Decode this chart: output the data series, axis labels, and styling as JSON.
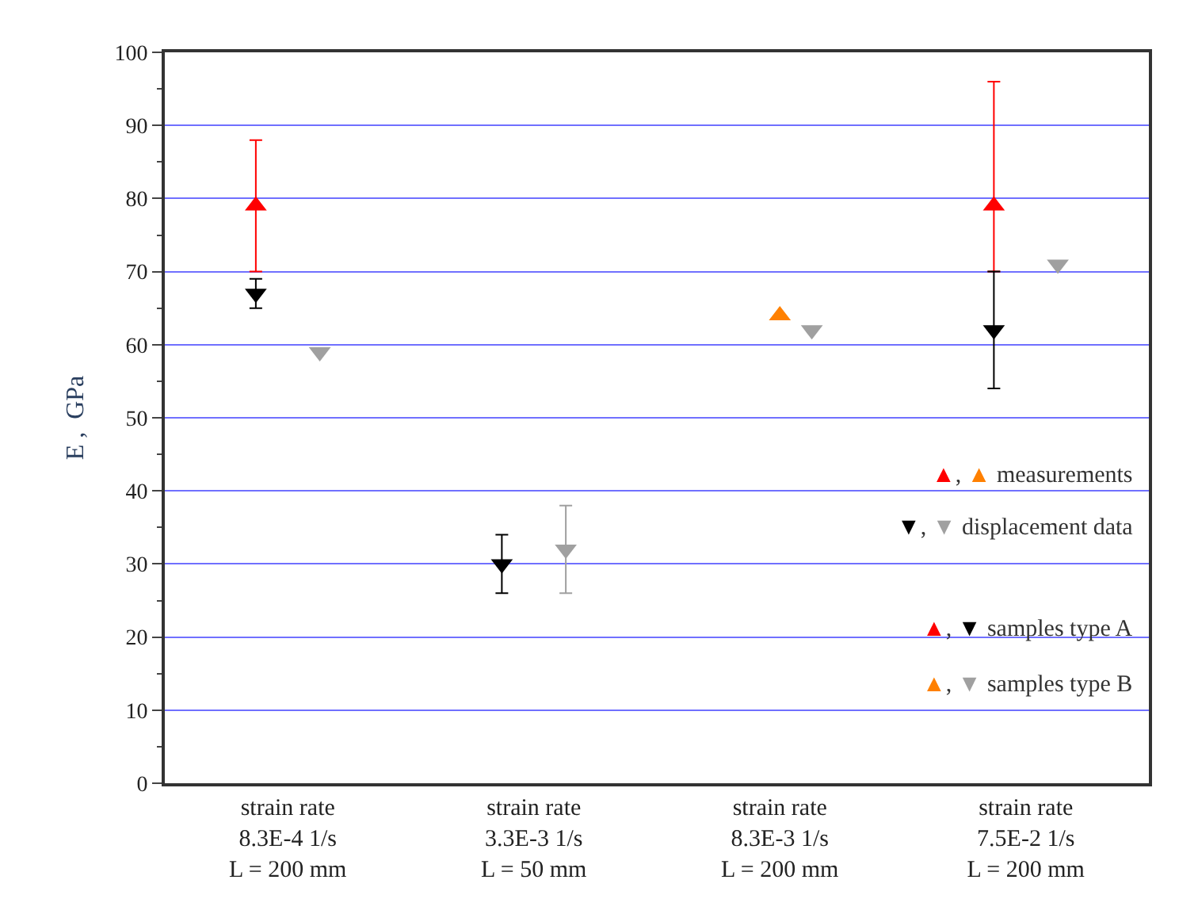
{
  "chart_data": {
    "type": "scatter",
    "ylabel": "E ,  GPa",
    "categories": [
      "strain rate\n8.3E-4 1/s\nL = 200 mm",
      "strain rate\n3.3E-3 1/s\nL = 50 mm",
      "strain rate\n8.3E-3 1/s\nL = 200 mm",
      "strain rate\n7.5E-2 1/s\nL = 200 mm"
    ],
    "series": [
      {
        "color": "#ff0000",
        "marker": "triangle-up",
        "values": [
          79,
          null,
          null,
          79
        ],
        "errors": [
          [
            70,
            88
          ],
          null,
          null,
          [
            70,
            96
          ]
        ]
      },
      {
        "color": "#000000",
        "marker": "triangle-down",
        "values": [
          67,
          30,
          null,
          62
        ],
        "errors": [
          [
            65,
            69
          ],
          [
            26,
            34
          ],
          null,
          [
            54,
            70
          ]
        ]
      },
      {
        "color": "#ff8000",
        "marker": "triangle-up",
        "values": [
          null,
          null,
          64,
          null
        ],
        "errors": [
          null,
          null,
          null,
          null
        ]
      },
      {
        "color": "#a0a0a0",
        "marker": "triangle-down",
        "values": [
          59,
          32,
          62,
          71
        ],
        "errors": [
          null,
          [
            26,
            38
          ],
          null,
          null
        ]
      }
    ],
    "annotations": [
      "▲, ▲ measurements",
      "▼, ▼ displacement data",
      "▲, ▼ samples type A",
      "▲, ▼ samples type B"
    ],
    "ylim": [
      0,
      100
    ],
    "yticks": [
      0,
      10,
      20,
      30,
      40,
      50,
      60,
      70,
      80,
      90,
      100
    ],
    "grid": "y",
    "legend": false
  }
}
